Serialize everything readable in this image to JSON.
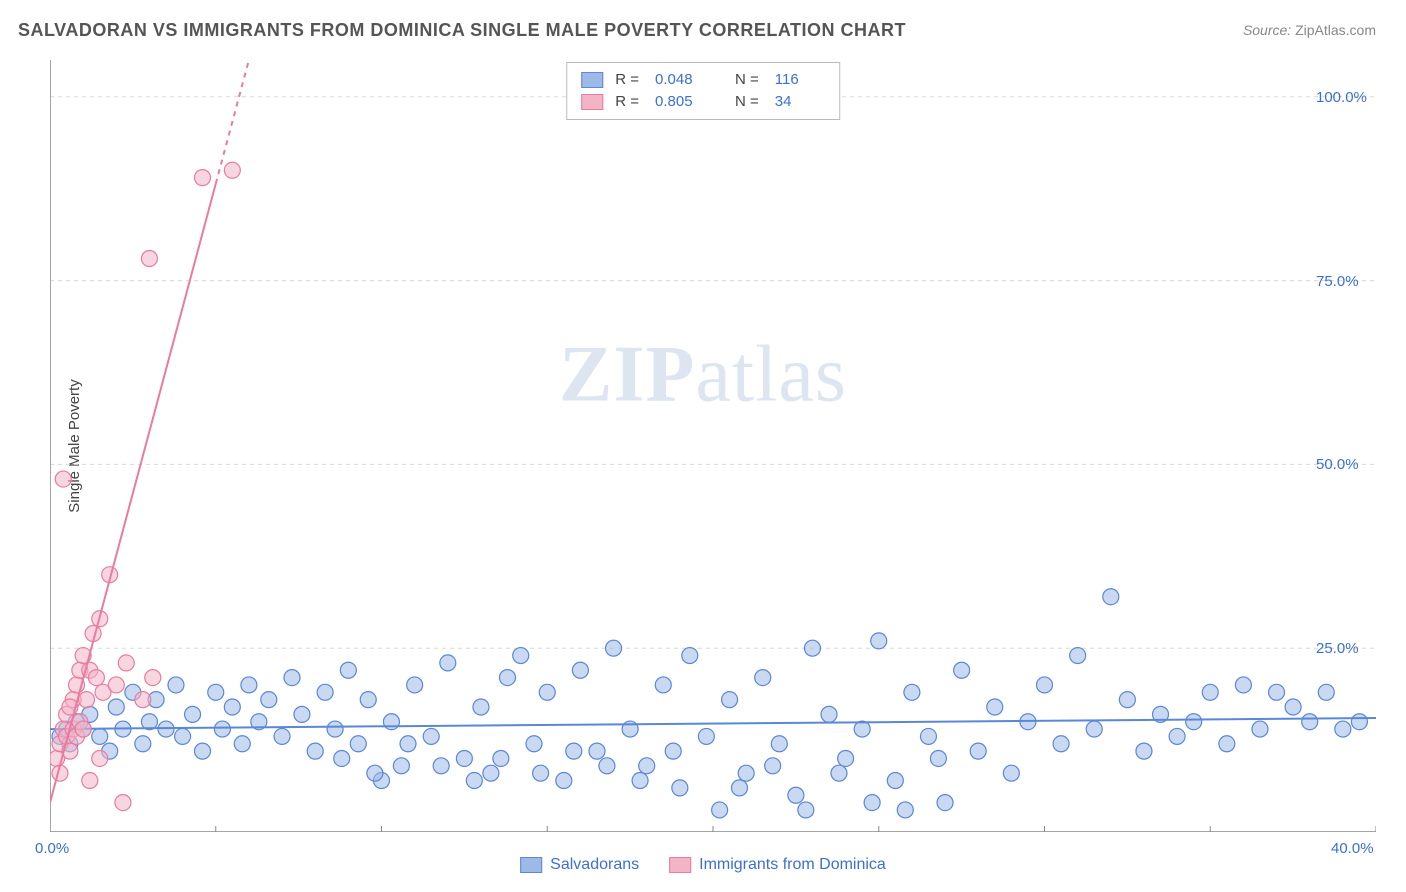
{
  "title": "SALVADORAN VS IMMIGRANTS FROM DOMINICA SINGLE MALE POVERTY CORRELATION CHART",
  "source_label": "Source:",
  "source_name": "ZipAtlas.com",
  "y_axis_label": "Single Male Poverty",
  "watermark_bold": "ZIP",
  "watermark_light": "atlas",
  "chart": {
    "type": "scatter",
    "background_color": "#ffffff",
    "grid_color": "#d8d8d8",
    "axis_color": "#888888",
    "xlim": [
      0,
      40
    ],
    "ylim": [
      0,
      105
    ],
    "x_ticks": [
      0,
      5,
      10,
      15,
      20,
      25,
      30,
      35,
      40
    ],
    "x_tick_labels": [
      "0.0%",
      "",
      "",
      "",
      "",
      "",
      "",
      "",
      "40.0%"
    ],
    "y_ticks": [
      25,
      50,
      75,
      100
    ],
    "y_tick_labels": [
      "25.0%",
      "50.0%",
      "75.0%",
      "100.0%"
    ],
    "marker_radius": 8,
    "marker_opacity": 0.55,
    "line_width": 2
  },
  "series": [
    {
      "name": "Salvadorans",
      "fill_color": "#9cb9e8",
      "stroke_color": "#5a87d6",
      "r_value": "0.048",
      "n_value": "116",
      "trend_line": {
        "x1": 0,
        "y1": 14.0,
        "x2": 40,
        "y2": 15.5,
        "dash": false
      },
      "points": [
        [
          0.3,
          13
        ],
        [
          0.5,
          14
        ],
        [
          0.6,
          12
        ],
        [
          0.8,
          15
        ],
        [
          1.0,
          14
        ],
        [
          1.2,
          16
        ],
        [
          1.5,
          13
        ],
        [
          1.8,
          11
        ],
        [
          2.0,
          17
        ],
        [
          2.2,
          14
        ],
        [
          2.5,
          19
        ],
        [
          2.8,
          12
        ],
        [
          3.0,
          15
        ],
        [
          3.2,
          18
        ],
        [
          3.5,
          14
        ],
        [
          3.8,
          20
        ],
        [
          4.0,
          13
        ],
        [
          4.3,
          16
        ],
        [
          4.6,
          11
        ],
        [
          5.0,
          19
        ],
        [
          5.2,
          14
        ],
        [
          5.5,
          17
        ],
        [
          5.8,
          12
        ],
        [
          6.0,
          20
        ],
        [
          6.3,
          15
        ],
        [
          6.6,
          18
        ],
        [
          7.0,
          13
        ],
        [
          7.3,
          21
        ],
        [
          7.6,
          16
        ],
        [
          8.0,
          11
        ],
        [
          8.3,
          19
        ],
        [
          8.6,
          14
        ],
        [
          9.0,
          22
        ],
        [
          9.3,
          12
        ],
        [
          9.6,
          18
        ],
        [
          10.0,
          7
        ],
        [
          10.3,
          15
        ],
        [
          10.6,
          9
        ],
        [
          11.0,
          20
        ],
        [
          11.5,
          13
        ],
        [
          12.0,
          23
        ],
        [
          12.5,
          10
        ],
        [
          13.0,
          17
        ],
        [
          13.3,
          8
        ],
        [
          13.8,
          21
        ],
        [
          14.2,
          24
        ],
        [
          14.6,
          12
        ],
        [
          15.0,
          19
        ],
        [
          15.5,
          7
        ],
        [
          16.0,
          22
        ],
        [
          16.5,
          11
        ],
        [
          17.0,
          25
        ],
        [
          17.5,
          14
        ],
        [
          18.0,
          9
        ],
        [
          18.5,
          20
        ],
        [
          19.0,
          6
        ],
        [
          19.3,
          24
        ],
        [
          19.8,
          13
        ],
        [
          20.2,
          3
        ],
        [
          20.5,
          18
        ],
        [
          21.0,
          8
        ],
        [
          21.5,
          21
        ],
        [
          22.0,
          12
        ],
        [
          22.5,
          5
        ],
        [
          23.0,
          25
        ],
        [
          23.5,
          16
        ],
        [
          24.0,
          10
        ],
        [
          24.5,
          14
        ],
        [
          25.0,
          26
        ],
        [
          25.5,
          7
        ],
        [
          26.0,
          19
        ],
        [
          26.5,
          13
        ],
        [
          27.0,
          4
        ],
        [
          27.5,
          22
        ],
        [
          28.0,
          11
        ],
        [
          28.5,
          17
        ],
        [
          29.0,
          8
        ],
        [
          29.5,
          15
        ],
        [
          30.0,
          20
        ],
        [
          30.5,
          12
        ],
        [
          31.0,
          24
        ],
        [
          31.5,
          14
        ],
        [
          32.0,
          32
        ],
        [
          32.5,
          18
        ],
        [
          33.0,
          11
        ],
        [
          33.5,
          16
        ],
        [
          34.0,
          13
        ],
        [
          34.5,
          15
        ],
        [
          35.0,
          19
        ],
        [
          35.5,
          12
        ],
        [
          36.0,
          20
        ],
        [
          36.5,
          14
        ],
        [
          37.0,
          19
        ],
        [
          37.5,
          17
        ],
        [
          38.0,
          15
        ],
        [
          38.5,
          19
        ],
        [
          39.0,
          14
        ],
        [
          39.5,
          15
        ],
        [
          11.8,
          9
        ],
        [
          12.8,
          7
        ],
        [
          13.6,
          10
        ],
        [
          14.8,
          8
        ],
        [
          15.8,
          11
        ],
        [
          16.8,
          9
        ],
        [
          17.8,
          7
        ],
        [
          18.8,
          11
        ],
        [
          8.8,
          10
        ],
        [
          9.8,
          8
        ],
        [
          10.8,
          12
        ],
        [
          20.8,
          6
        ],
        [
          21.8,
          9
        ],
        [
          22.8,
          3
        ],
        [
          23.8,
          8
        ],
        [
          24.8,
          4
        ],
        [
          25.8,
          3
        ],
        [
          26.8,
          10
        ]
      ]
    },
    {
      "name": "Immigrants from Dominica",
      "fill_color": "#f3b4c6",
      "stroke_color": "#ea7ba0",
      "r_value": "0.805",
      "n_value": "34",
      "trend_line": {
        "x1": 0,
        "y1": 4,
        "x2": 6.0,
        "y2": 105,
        "dash_from_x": 5.0
      },
      "points": [
        [
          0.2,
          10
        ],
        [
          0.3,
          12
        ],
        [
          0.4,
          14
        ],
        [
          0.5,
          13
        ],
        [
          0.5,
          16
        ],
        [
          0.6,
          11
        ],
        [
          0.7,
          14
        ],
        [
          0.7,
          18
        ],
        [
          0.8,
          13
        ],
        [
          0.8,
          20
        ],
        [
          0.9,
          15
        ],
        [
          0.9,
          22
        ],
        [
          1.0,
          14
        ],
        [
          1.0,
          24
        ],
        [
          1.1,
          18
        ],
        [
          1.2,
          22
        ],
        [
          1.3,
          27
        ],
        [
          1.4,
          21
        ],
        [
          1.5,
          29
        ],
        [
          1.6,
          19
        ],
        [
          0.4,
          48
        ],
        [
          0.6,
          17
        ],
        [
          1.8,
          35
        ],
        [
          2.0,
          20
        ],
        [
          2.3,
          23
        ],
        [
          2.8,
          18
        ],
        [
          0.3,
          8
        ],
        [
          1.2,
          7
        ],
        [
          1.5,
          10
        ],
        [
          2.2,
          4
        ],
        [
          3.0,
          78
        ],
        [
          4.6,
          89
        ],
        [
          5.5,
          90
        ],
        [
          3.1,
          21
        ]
      ]
    }
  ],
  "legend_top": {
    "r_label": "R =",
    "n_label": "N ="
  },
  "legend_bottom": [
    {
      "label": "Salvadorans",
      "fill": "#9cb9e8",
      "stroke": "#5a87d6"
    },
    {
      "label": "Immigrants from Dominica",
      "fill": "#f3b4c6",
      "stroke": "#ea7ba0"
    }
  ]
}
